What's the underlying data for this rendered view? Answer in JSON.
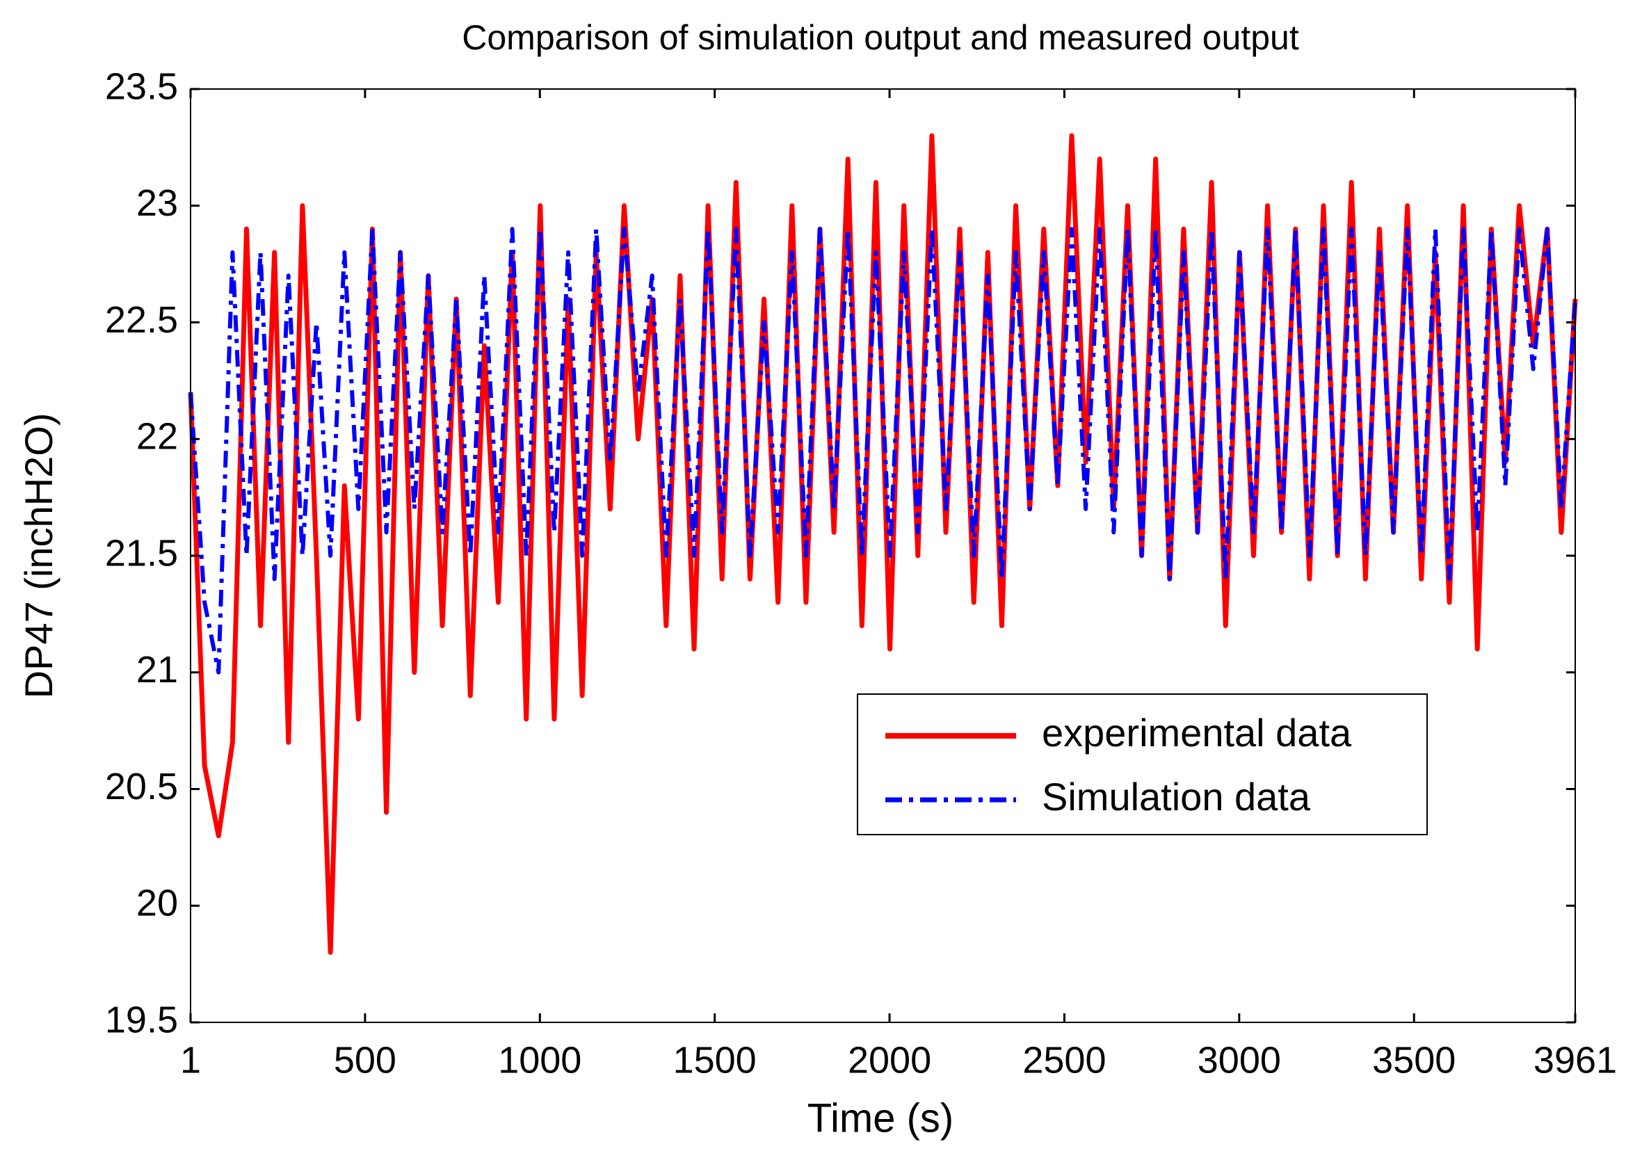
{
  "chart_data": {
    "type": "line",
    "title": "Comparison of simulation output and measured output",
    "xlabel": "Time (s)",
    "ylabel": "DP47 (inchH2O)",
    "x": [
      1,
      41,
      81,
      121,
      161,
      201,
      241,
      281,
      321,
      361,
      401,
      441,
      481,
      521,
      561,
      601,
      641,
      681,
      721,
      761,
      801,
      841,
      881,
      921,
      961,
      1001,
      1041,
      1081,
      1121,
      1161,
      1201,
      1241,
      1281,
      1321,
      1361,
      1401,
      1441,
      1481,
      1521,
      1561,
      1601,
      1641,
      1681,
      1721,
      1761,
      1801,
      1841,
      1881,
      1921,
      1961,
      2001,
      2041,
      2081,
      2121,
      2161,
      2201,
      2241,
      2281,
      2321,
      2361,
      2401,
      2441,
      2481,
      2521,
      2561,
      2601,
      2641,
      2681,
      2721,
      2761,
      2801,
      2841,
      2881,
      2921,
      2961,
      3001,
      3041,
      3081,
      3121,
      3161,
      3201,
      3241,
      3281,
      3321,
      3361,
      3401,
      3441,
      3481,
      3521,
      3561,
      3601,
      3641,
      3681,
      3721,
      3761,
      3801,
      3841,
      3881,
      3921,
      3961
    ],
    "series": [
      {
        "name": "experimental data",
        "color": "#ff0000",
        "dash": "solid",
        "values": [
          22.2,
          20.6,
          20.3,
          20.7,
          22.9,
          21.2,
          22.8,
          20.7,
          23.0,
          21.5,
          19.8,
          21.8,
          20.8,
          22.9,
          20.4,
          22.8,
          21.0,
          22.7,
          21.2,
          22.6,
          20.9,
          22.4,
          21.3,
          22.8,
          20.8,
          23.0,
          20.8,
          22.6,
          20.9,
          22.8,
          21.7,
          23.0,
          22.0,
          22.6,
          21.2,
          22.7,
          21.1,
          23.0,
          21.4,
          23.1,
          21.4,
          22.6,
          21.3,
          23.0,
          21.3,
          22.9,
          21.6,
          23.2,
          21.2,
          23.1,
          21.1,
          23.0,
          21.5,
          23.3,
          21.6,
          22.9,
          21.3,
          22.8,
          21.2,
          23.0,
          21.7,
          22.9,
          21.8,
          23.3,
          21.9,
          23.2,
          21.7,
          23.0,
          21.5,
          23.2,
          21.4,
          22.9,
          21.6,
          23.1,
          21.2,
          22.8,
          21.5,
          23.0,
          21.6,
          22.9,
          21.4,
          23.0,
          21.5,
          23.1,
          21.4,
          22.9,
          21.6,
          23.0,
          21.4,
          22.8,
          21.3,
          23.0,
          21.1,
          22.9,
          21.9,
          23.0,
          22.4,
          22.9,
          21.6,
          22.6
        ]
      },
      {
        "name": "Simulation data",
        "color": "#0000ff",
        "dash": "dashdot",
        "values": [
          22.2,
          21.3,
          21.0,
          22.8,
          21.5,
          22.8,
          21.4,
          22.7,
          21.5,
          22.5,
          21.5,
          22.8,
          21.7,
          22.9,
          21.6,
          22.8,
          21.7,
          22.7,
          21.6,
          22.6,
          21.5,
          22.7,
          21.6,
          22.9,
          21.5,
          22.9,
          21.6,
          22.8,
          21.5,
          22.9,
          21.9,
          22.9,
          22.2,
          22.7,
          21.5,
          22.6,
          21.5,
          22.9,
          21.6,
          22.9,
          21.5,
          22.5,
          21.6,
          22.8,
          21.5,
          22.9,
          21.7,
          22.9,
          21.5,
          22.8,
          21.5,
          22.8,
          21.6,
          22.9,
          21.7,
          22.8,
          21.5,
          22.7,
          21.4,
          22.8,
          21.7,
          22.8,
          21.8,
          22.9,
          21.7,
          22.9,
          21.6,
          22.9,
          21.5,
          22.9,
          21.4,
          22.8,
          21.6,
          22.9,
          21.4,
          22.8,
          21.6,
          22.9,
          21.6,
          22.9,
          21.5,
          22.9,
          21.5,
          22.9,
          21.5,
          22.8,
          21.6,
          22.9,
          21.5,
          22.9,
          21.4,
          22.9,
          21.6,
          22.9,
          21.8,
          22.9,
          22.3,
          22.9,
          21.7,
          22.6
        ]
      }
    ],
    "xlim": [
      1,
      3961
    ],
    "xticks": [
      1,
      500,
      1000,
      1500,
      2000,
      2500,
      3000,
      3500,
      3961
    ],
    "ylim": [
      19.5,
      23.5
    ],
    "yticks": [
      19.5,
      20,
      20.5,
      21,
      21.5,
      22,
      22.5,
      23,
      23.5
    ],
    "grid": false,
    "legend": "lower right"
  }
}
